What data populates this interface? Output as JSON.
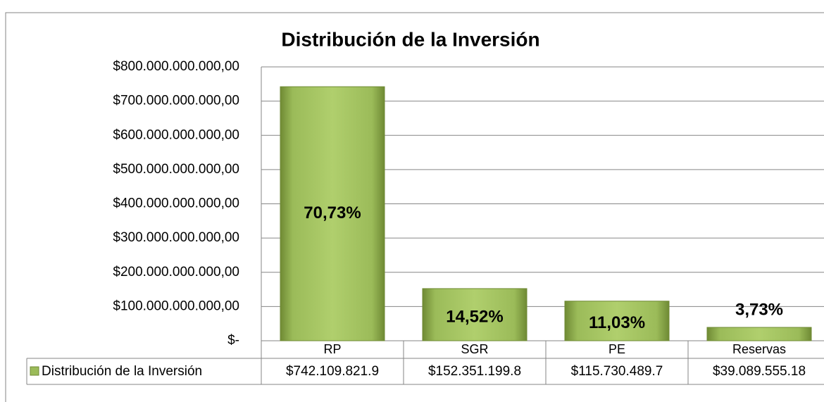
{
  "chart_data": {
    "type": "bar",
    "title": "Distribución de la Inversión",
    "categories": [
      "RP",
      "SGR",
      "PE",
      "Reservas"
    ],
    "series": [
      {
        "name": "Distribución de la Inversión",
        "color": "#9bbb59",
        "values": [
          742109821900,
          152351199800,
          115730489700,
          39089555180
        ],
        "value_labels": [
          "$742.109.821.9",
          "$152.351.199.8",
          "$115.730.489.7",
          "$39.089.555.18"
        ],
        "percent_labels": [
          "70,73%",
          "14,52%",
          "11,03%",
          "3,73%"
        ]
      }
    ],
    "ylim": [
      0,
      800000000000
    ],
    "yticks": [
      {
        "value": 0,
        "label": "$-"
      },
      {
        "value": 100000000000,
        "label": "$100.000.000.000,00"
      },
      {
        "value": 200000000000,
        "label": "$200.000.000.000,00"
      },
      {
        "value": 300000000000,
        "label": "$300.000.000.000,00"
      },
      {
        "value": 400000000000,
        "label": "$400.000.000.000,00"
      },
      {
        "value": 500000000000,
        "label": "$500.000.000.000,00"
      },
      {
        "value": 600000000000,
        "label": "$600.000.000.000,00"
      },
      {
        "value": 700000000000,
        "label": "$700.000.000.000,00"
      },
      {
        "value": 800000000000,
        "label": "$800.000.000.000,00"
      }
    ],
    "grid": true,
    "data_table": true
  }
}
